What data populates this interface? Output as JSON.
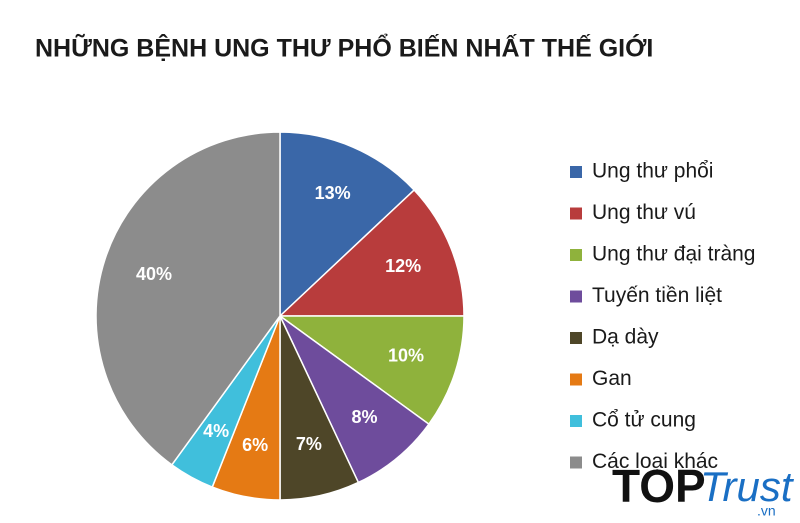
{
  "chart_data": {
    "type": "pie",
    "title": "NHỮNG BỆNH UNG THƯ PHỔ BIẾN NHẤT THẾ GIỚI",
    "categories": [
      "Ung thư phổi",
      "Ung thư vú",
      "Ung thư đại tràng",
      "Tuyến tiền liệt",
      "Dạ dày",
      "Gan",
      "Cổ tử cung",
      "Các loại khác"
    ],
    "values": [
      13,
      12,
      10,
      8,
      7,
      6,
      4,
      40
    ],
    "value_labels": [
      "13%",
      "12%",
      "10%",
      "8%",
      "7%",
      "6%",
      "4%",
      "40%"
    ],
    "colors": [
      "#3a67a8",
      "#b83c3c",
      "#8fb23c",
      "#6e4c9c",
      "#4e4628",
      "#e57a14",
      "#40bfdc",
      "#8c8c8c"
    ],
    "legend": "right"
  },
  "watermark": {
    "brand_top": "TOP",
    "brand_trust": "Trust",
    "domain": ".vn"
  }
}
